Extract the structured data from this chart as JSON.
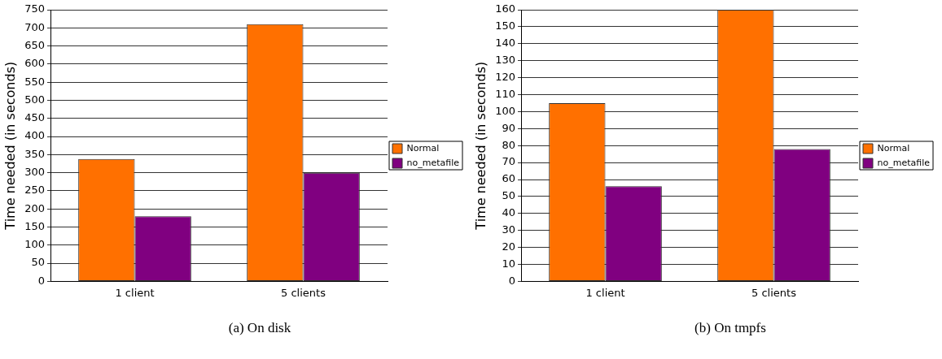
{
  "chart_data": [
    {
      "type": "bar",
      "categories": [
        "1 client",
        "5 clients"
      ],
      "ylabel": "Time needed (in seconds)",
      "series": [
        {
          "name": "Normal",
          "color": "#ff7000",
          "values": [
            338,
            710
          ]
        },
        {
          "name": "no_metafile",
          "color": "#800080",
          "values": [
            180,
            300
          ]
        }
      ],
      "ylim": [
        0,
        750
      ],
      "yticks": [
        0,
        50,
        100,
        150,
        200,
        250,
        300,
        350,
        400,
        450,
        500,
        550,
        600,
        650,
        700,
        750
      ],
      "grid": "y",
      "legend": "right",
      "annotations": [
        "(a) On disk"
      ]
    },
    {
      "type": "bar",
      "categories": [
        "1 client",
        "5 clients"
      ],
      "ylabel": "Time needed (in seconds)",
      "series": [
        {
          "name": "Normal",
          "color": "#ff7000",
          "values": [
            105,
            160
          ]
        },
        {
          "name": "no_metafile",
          "color": "#800080",
          "values": [
            56,
            78
          ]
        }
      ],
      "ylim": [
        0,
        160
      ],
      "yticks": [
        0,
        10,
        20,
        30,
        40,
        50,
        60,
        70,
        80,
        90,
        100,
        110,
        120,
        130,
        140,
        150,
        160
      ],
      "grid": "y",
      "legend": "right",
      "annotations": [
        "(b) On tmpfs"
      ]
    }
  ]
}
